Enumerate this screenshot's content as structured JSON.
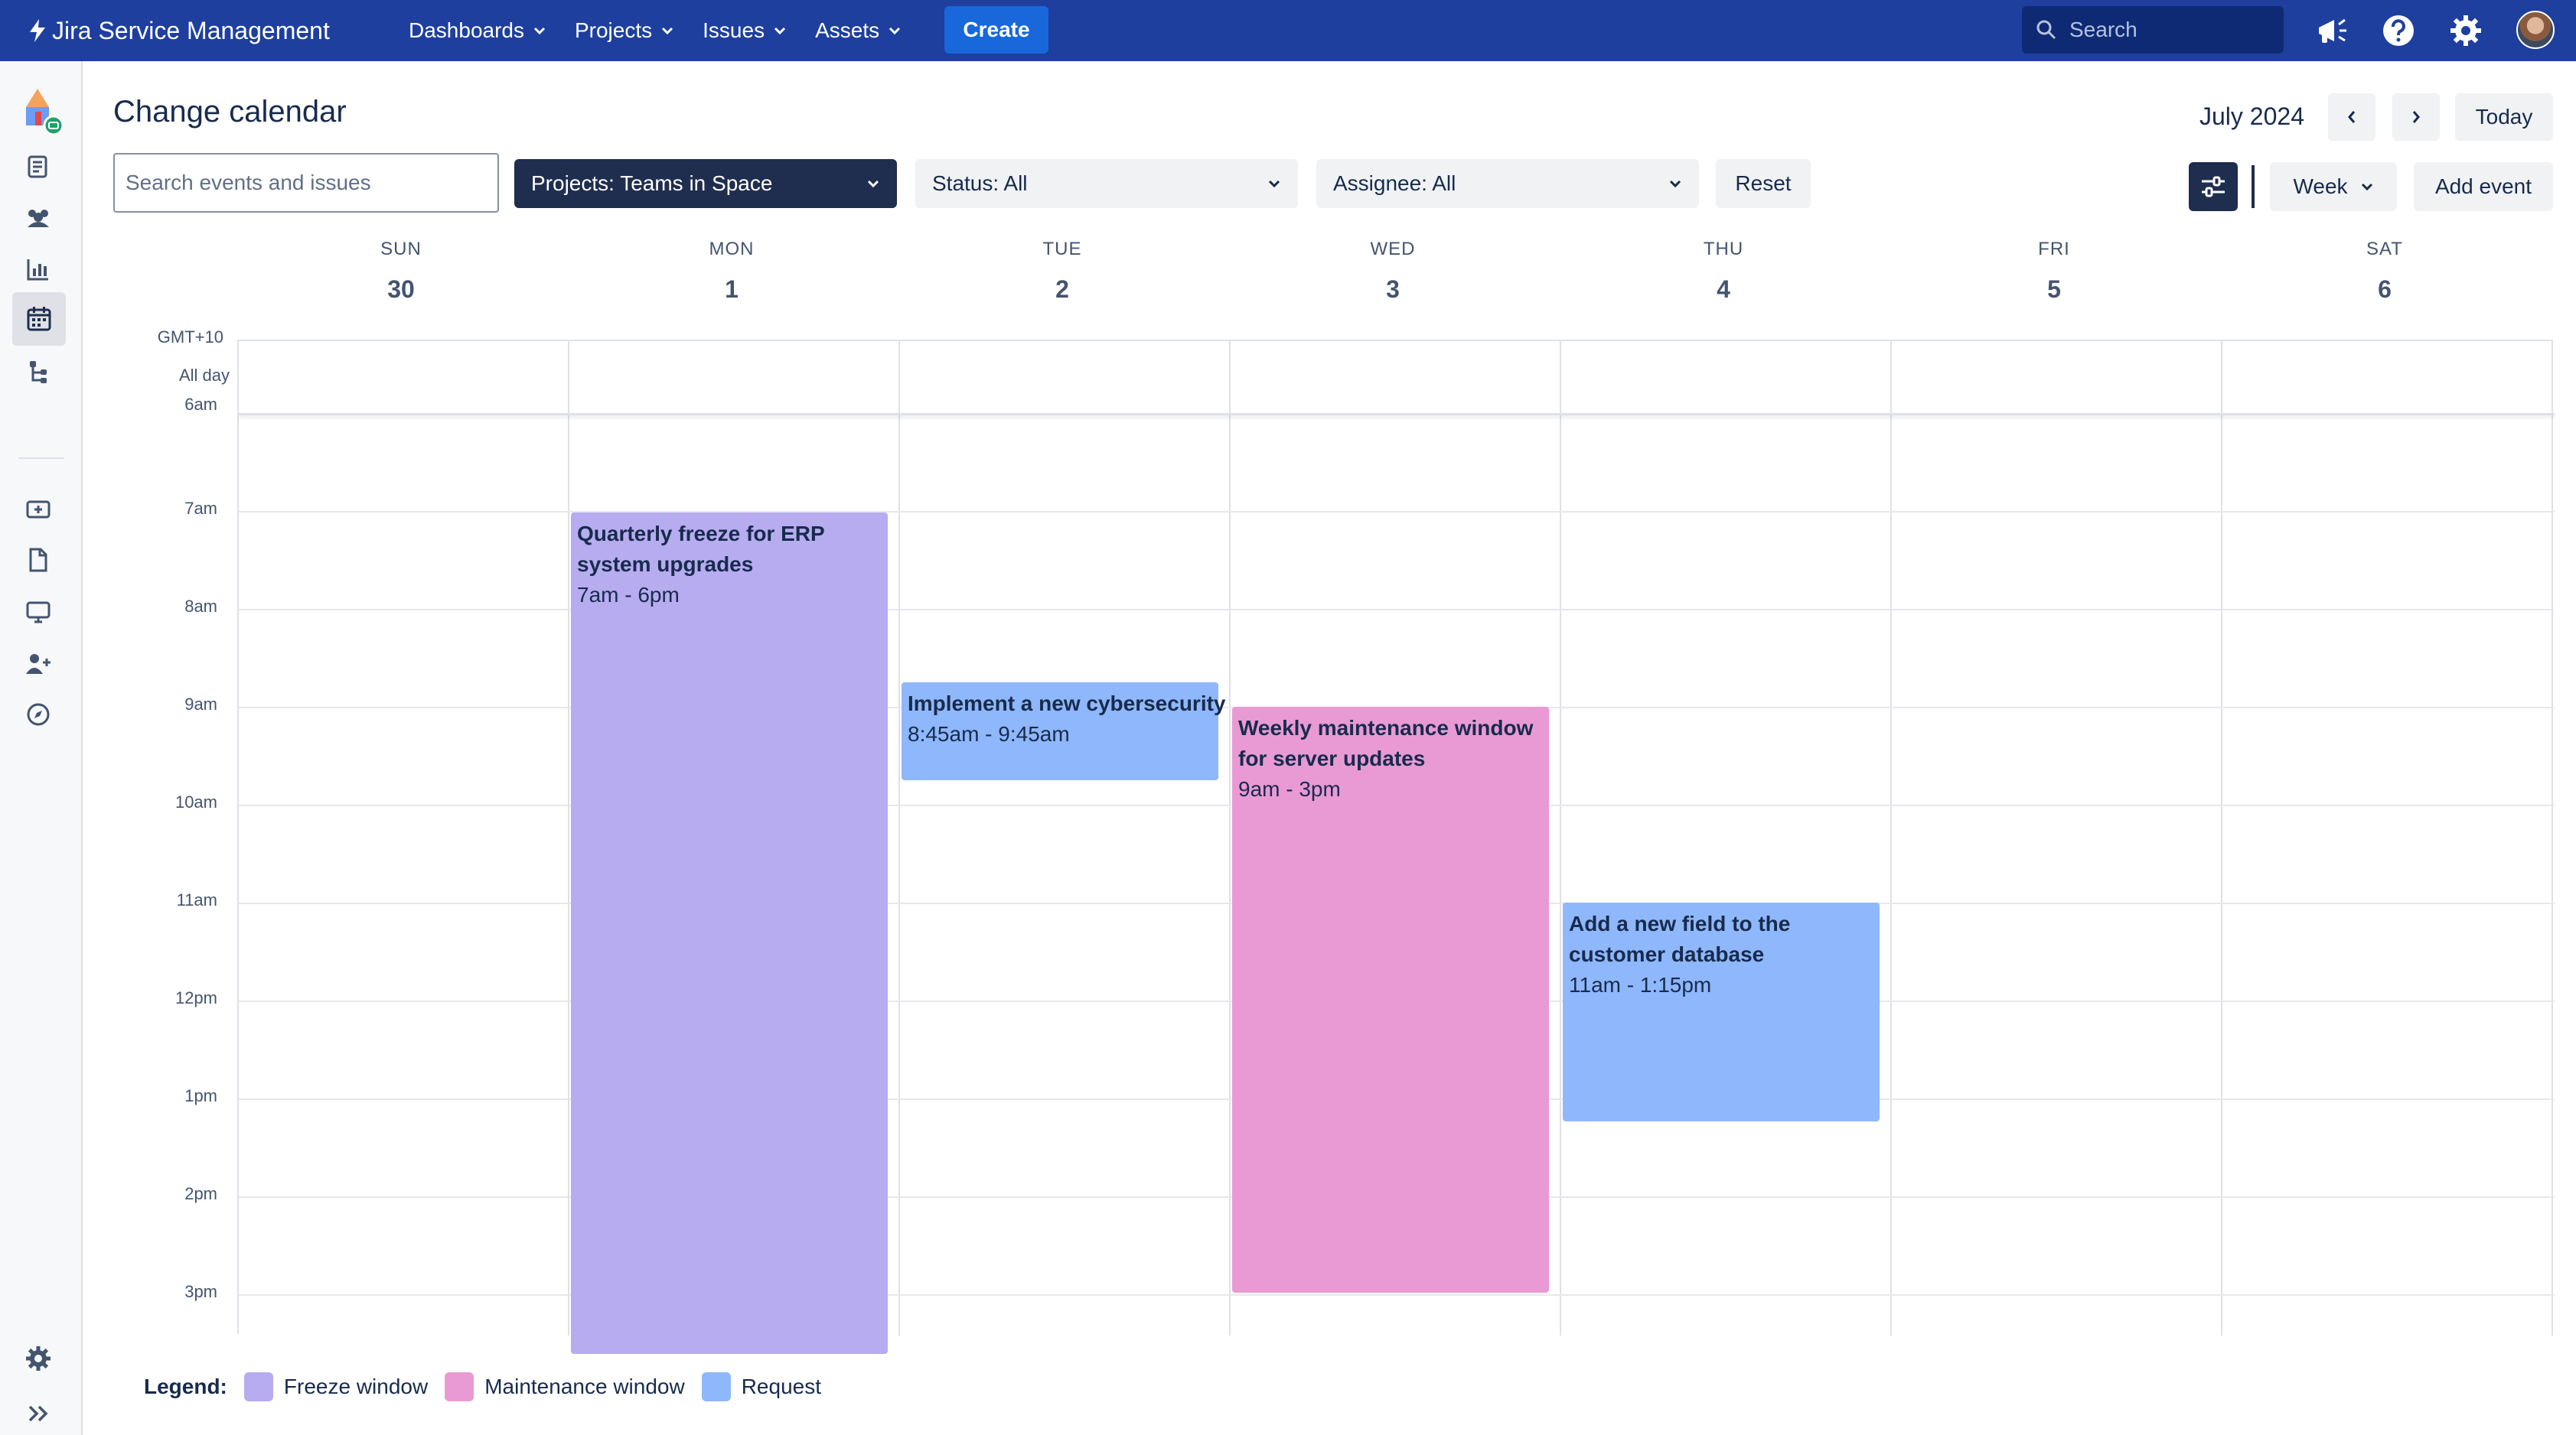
{
  "app": {
    "brand": "Jira Service Management"
  },
  "topnav": {
    "items": [
      {
        "label": "Dashboards"
      },
      {
        "label": "Projects"
      },
      {
        "label": "Issues"
      },
      {
        "label": "Assets"
      }
    ],
    "create_label": "Create",
    "search_placeholder": "Search"
  },
  "header": {
    "title": "Change calendar",
    "month": "July 2024",
    "today_label": "Today"
  },
  "filters": {
    "search_placeholder": "Search events and issues",
    "projects": "Projects: Teams in Space",
    "status": "Status: All",
    "assignee": "Assignee: All",
    "reset_label": "Reset",
    "view_label": "Week",
    "add_event_label": "Add event"
  },
  "calendar": {
    "timezone": "GMT+10",
    "all_day_label": "All day",
    "days": [
      {
        "name": "SUN",
        "num": "30"
      },
      {
        "name": "MON",
        "num": "1"
      },
      {
        "name": "TUE",
        "num": "2"
      },
      {
        "name": "WED",
        "num": "3"
      },
      {
        "name": "THU",
        "num": "4"
      },
      {
        "name": "FRI",
        "num": "5"
      },
      {
        "name": "SAT",
        "num": "6"
      }
    ],
    "partial_hour": "6am",
    "hours": [
      "7am",
      "8am",
      "9am",
      "10am",
      "11am",
      "12pm",
      "1pm",
      "2pm",
      "3pm"
    ],
    "events": [
      {
        "title": "Quarterly freeze for ERP system upgrades",
        "time": "7am - 6pm",
        "day": "MON",
        "type": "Freeze window"
      },
      {
        "title": "Implement a new cybersecurity",
        "time": "8:45am - 9:45am",
        "day": "TUE",
        "type": "Request"
      },
      {
        "title": "Weekly maintenance window for server updates",
        "time": "9am - 3pm",
        "day": "WED",
        "type": "Maintenance window"
      },
      {
        "title": "Add a new field to the customer database",
        "time": "11am - 1:15pm",
        "day": "THU",
        "type": "Request"
      }
    ]
  },
  "legend": {
    "title": "Legend:",
    "items": [
      {
        "label": "Freeze window",
        "color": "#b7acf0"
      },
      {
        "label": "Maintenance window",
        "color": "#e99ad4"
      },
      {
        "label": "Request",
        "color": "#8fb7fb"
      }
    ]
  },
  "colors": {
    "topnav_bg": "#1e3f9e",
    "create_button": "#1868db",
    "freeze": "#b7acf0",
    "maintenance": "#e99ad4",
    "request": "#8fb7fb"
  }
}
